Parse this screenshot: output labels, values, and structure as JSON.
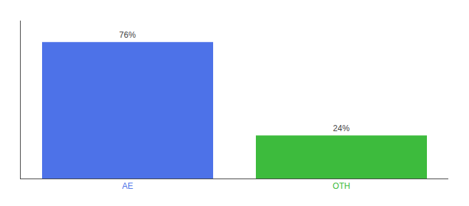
{
  "chart_data": {
    "type": "bar",
    "categories": [
      "AE",
      "OTH"
    ],
    "values": [
      76,
      24
    ],
    "value_labels": [
      "76%",
      "24%"
    ],
    "data_labels": true,
    "colors": [
      "#4d72e8",
      "#3dbb3d"
    ],
    "ylim": [
      0,
      88
    ],
    "tick_labels": "x",
    "grid": false
  }
}
